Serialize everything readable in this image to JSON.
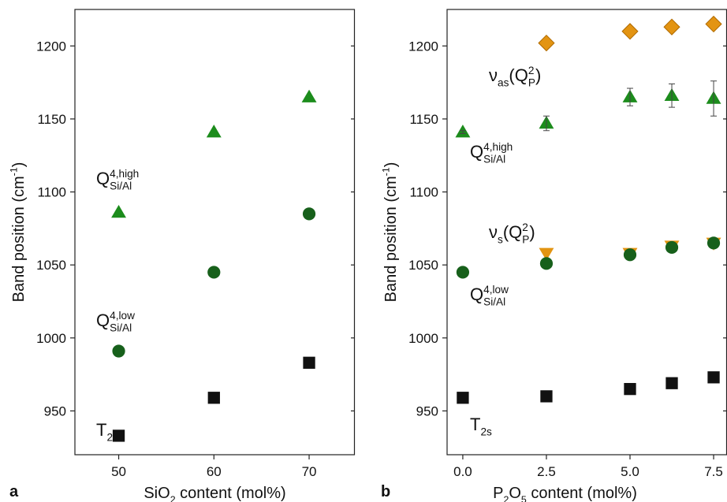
{
  "chart_data": [
    {
      "type": "scatter",
      "panel_label": "a",
      "x_label": [
        {
          "text": "SiO",
          "sub": "2"
        },
        {
          "text": " content (mol%)"
        }
      ],
      "y_label": [
        {
          "text": "Band position (cm",
          "sup": "-1"
        },
        {
          "text": ")"
        }
      ],
      "xlim": [
        45.4,
        74.8
      ],
      "xticks": [
        50,
        60,
        70
      ],
      "ylim": [
        920,
        1225
      ],
      "yticks": [
        950,
        1000,
        1050,
        1100,
        1150,
        1200
      ],
      "series": [
        {
          "marker": "triangle",
          "color": "#1c8c1c",
          "x": [
            50,
            60,
            70
          ],
          "values": [
            1086,
            1141,
            1165
          ]
        },
        {
          "marker": "circle",
          "color": "#17601b",
          "x": [
            50,
            60,
            70
          ],
          "values": [
            991,
            1045,
            1085
          ]
        },
        {
          "marker": "square",
          "color": "#111111",
          "x": [
            50,
            60,
            70
          ],
          "values": [
            933,
            959,
            983
          ]
        }
      ],
      "annotations": [
        {
          "color": "#1c8c1c",
          "parts": [
            {
              "text": "Q",
              "sup": "4,high",
              "sub": "Si/Al"
            }
          ]
        },
        {
          "color": "#17601b",
          "parts": [
            {
              "text": "Q",
              "sup": "4,low",
              "sub": "Si/Al"
            }
          ]
        },
        {
          "color": "#111111",
          "parts": [
            {
              "text": "T",
              "sub": "2s"
            }
          ]
        }
      ]
    },
    {
      "type": "scatter",
      "panel_label": "b",
      "x_label": [
        {
          "text": "P",
          "sub": "2"
        },
        {
          "text": "O",
          "sub": "5"
        },
        {
          "text": " content (mol%)"
        }
      ],
      "y_label": [
        {
          "text": "Band position (cm",
          "sup": "-1"
        },
        {
          "text": ")"
        }
      ],
      "xlim": [
        -0.47,
        7.9
      ],
      "xticks": [
        {
          "value": 0,
          "label": "0.0"
        },
        2.5,
        {
          "value": 5,
          "label": "5.0"
        },
        7.5
      ],
      "ylim": [
        920,
        1225
      ],
      "yticks": [
        950,
        1000,
        1050,
        1100,
        1150,
        1200
      ],
      "series": [
        {
          "marker": "diamond",
          "color": "#e39412",
          "x": [
            2.5,
            5,
            6.25,
            7.5
          ],
          "values": [
            1202,
            1210,
            1213,
            1215
          ]
        },
        {
          "marker": "triangle",
          "color": "#1c8c1c",
          "x": [
            0,
            2.5,
            5,
            6.25,
            7.5
          ],
          "values": [
            1141,
            1147,
            1165,
            1166,
            1164
          ],
          "errors": [
            1,
            5,
            6,
            8,
            12
          ]
        },
        {
          "marker": "triangle-down",
          "color": "#e39412",
          "x": [
            2.5,
            5,
            6.25,
            7.5
          ],
          "values": [
            1058,
            1058,
            1063,
            1065
          ]
        },
        {
          "marker": "circle",
          "color": "#17601b",
          "x": [
            0,
            2.5,
            5,
            6.25,
            7.5
          ],
          "values": [
            1045,
            1051,
            1057,
            1062,
            1065
          ]
        },
        {
          "marker": "square",
          "color": "#111111",
          "x": [
            0,
            2.5,
            5,
            6.25,
            7.5
          ],
          "values": [
            959,
            960,
            965,
            969,
            973
          ]
        }
      ],
      "annotations": [
        {
          "color": "#e39412",
          "parts": [
            {
              "text": "ν",
              "sub": "as"
            },
            {
              "text": "(Q",
              "sup": "2",
              "sub": "P"
            },
            {
              "text": ")"
            }
          ]
        },
        {
          "color": "#1c8c1c",
          "parts": [
            {
              "text": "Q",
              "sup": "4,high",
              "sub": "Si/Al"
            }
          ]
        },
        {
          "color": "#e39412",
          "parts": [
            {
              "text": "ν",
              "sub": "s"
            },
            {
              "text": "(Q",
              "sup": "2",
              "sub": "P"
            },
            {
              "text": ")"
            }
          ]
        },
        {
          "color": "#17601b",
          "parts": [
            {
              "text": "Q",
              "sup": "4,low",
              "sub": "Si/Al"
            }
          ]
        },
        {
          "color": "#111111",
          "parts": [
            {
              "text": "T",
              "sub": "2s"
            }
          ]
        }
      ]
    }
  ]
}
